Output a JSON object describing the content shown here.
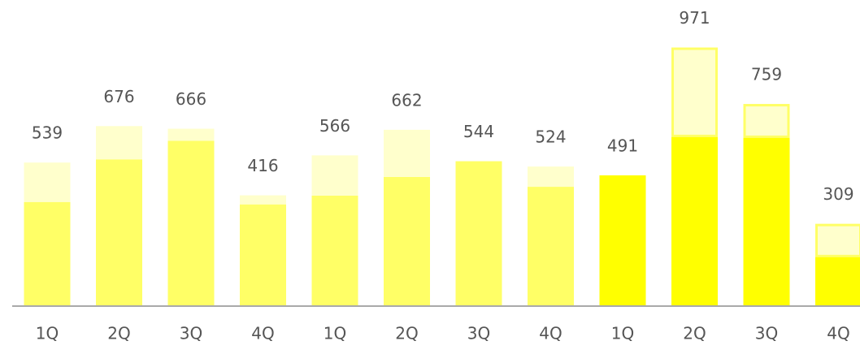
{
  "chart_data": {
    "type": "stacked_bar",
    "categories": [
      "1Q",
      "2Q",
      "3Q",
      "4Q",
      "1Q",
      "2Q",
      "3Q",
      "4Q",
      "1Q",
      "2Q",
      "3Q",
      "4Q"
    ],
    "series": [
      {
        "colors": [
          "#ffff66",
          "#ffff66",
          "#ffff66",
          "#ffff66",
          "#ffff66",
          "#ffff66",
          "#ffff66",
          "#ffff66",
          "#ffff00",
          "#ffff00",
          "#ffff00",
          "#ffff00"
        ],
        "values": [
          391,
          551,
          621,
          382,
          415,
          485,
          544,
          448,
          491,
          639,
          636,
          188
        ]
      },
      {
        "colors": [
          "#ffffcc",
          "#ffffcc",
          "#ffffcc",
          "#ffffcc",
          "#ffffcc",
          "#ffffcc",
          "#ffffcc",
          "#ffffcc",
          "#ffffcc",
          "#ffffcc",
          "#ffffcc",
          "#ffffcc"
        ],
        "borders": [
          null,
          null,
          null,
          null,
          null,
          null,
          null,
          null,
          "#ffff66",
          "#ffff66",
          "#ffff66",
          "#ffff66"
        ],
        "values": [
          148,
          125,
          45,
          34,
          151,
          177,
          0,
          76,
          0,
          332,
          123,
          121
        ]
      }
    ],
    "totals": [
      539,
      676,
      666,
      416,
      566,
      662,
      544,
      524,
      491,
      971,
      759,
      309
    ],
    "ylim": [
      0,
      1000
    ]
  }
}
